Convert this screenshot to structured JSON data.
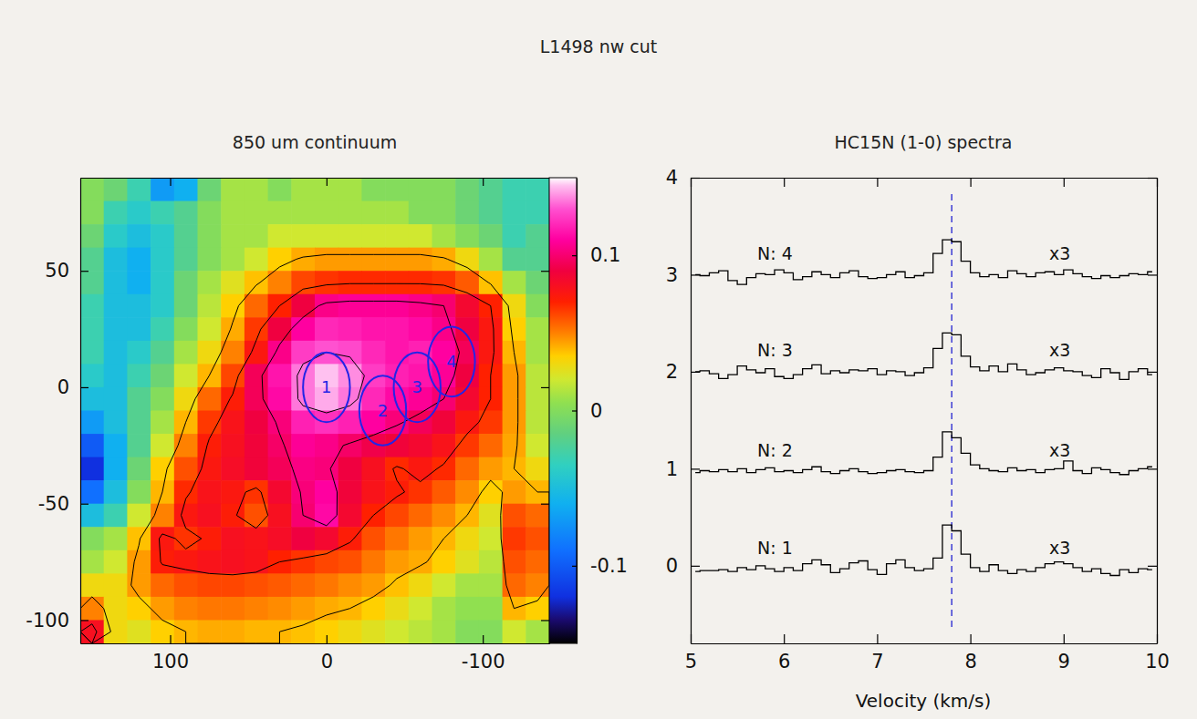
{
  "title": "L1498 nw cut",
  "chart_data": [
    {
      "type": "heatmap",
      "title": "850 um continuum",
      "x": [
        150,
        135,
        120,
        105,
        90,
        75,
        60,
        45,
        30,
        15,
        0,
        -15,
        -30,
        -45,
        -60,
        -75,
        -90,
        -105,
        -120,
        -135
      ],
      "y": [
        85,
        75,
        65,
        55,
        45,
        35,
        25,
        15,
        5,
        -5,
        -15,
        -25,
        -35,
        -45,
        -55,
        -65,
        -75,
        -85,
        -95,
        -105
      ],
      "z": [
        [
          0.0,
          -0.01,
          -0.03,
          -0.07,
          -0.06,
          -0.01,
          0.01,
          0.01,
          0.0,
          0.01,
          0.01,
          0.01,
          0.0,
          0.0,
          0.0,
          0.0,
          -0.01,
          -0.02,
          -0.03,
          -0.03
        ],
        [
          0.0,
          -0.03,
          -0.04,
          -0.03,
          -0.02,
          0.0,
          0.01,
          0.01,
          0.01,
          0.01,
          0.01,
          0.01,
          0.01,
          0.01,
          0.0,
          0.0,
          -0.01,
          -0.02,
          -0.03,
          -0.03
        ],
        [
          -0.01,
          -0.04,
          -0.05,
          -0.04,
          -0.02,
          0.0,
          0.01,
          0.01,
          0.02,
          0.02,
          0.02,
          0.02,
          0.02,
          0.02,
          0.02,
          0.01,
          0.0,
          -0.01,
          -0.03,
          -0.02
        ],
        [
          -0.02,
          -0.05,
          -0.06,
          -0.04,
          -0.02,
          0.0,
          0.01,
          0.02,
          0.035,
          0.042,
          0.045,
          0.045,
          0.045,
          0.045,
          0.045,
          0.042,
          0.03,
          0.01,
          -0.02,
          -0.02
        ],
        [
          -0.02,
          -0.05,
          -0.06,
          -0.04,
          -0.01,
          0.01,
          0.025,
          0.038,
          0.05,
          0.062,
          0.066,
          0.068,
          0.068,
          0.068,
          0.068,
          0.066,
          0.058,
          0.038,
          0.01,
          -0.01
        ],
        [
          -0.03,
          -0.05,
          -0.05,
          -0.04,
          -0.01,
          0.015,
          0.035,
          0.055,
          0.07,
          0.09,
          0.105,
          0.108,
          0.108,
          0.108,
          0.105,
          0.1,
          0.085,
          0.07,
          0.03,
          0.0
        ],
        [
          -0.03,
          -0.05,
          -0.05,
          -0.03,
          0.0,
          0.02,
          0.042,
          0.065,
          0.09,
          0.11,
          0.12,
          0.118,
          0.115,
          0.115,
          0.112,
          0.105,
          0.09,
          0.075,
          0.035,
          0.01
        ],
        [
          -0.03,
          -0.05,
          -0.04,
          -0.02,
          0.01,
          0.03,
          0.05,
          0.075,
          0.105,
          0.125,
          0.13,
          0.128,
          0.12,
          0.115,
          0.118,
          0.11,
          0.095,
          0.075,
          0.04,
          0.01
        ],
        [
          -0.04,
          -0.05,
          -0.03,
          -0.01,
          0.02,
          0.04,
          0.062,
          0.095,
          0.115,
          0.135,
          0.145,
          0.138,
          0.125,
          0.118,
          0.115,
          0.108,
          0.09,
          0.07,
          0.045,
          0.015
        ],
        [
          -0.05,
          -0.05,
          -0.02,
          0.0,
          0.03,
          0.055,
          0.072,
          0.095,
          0.112,
          0.135,
          0.142,
          0.135,
          0.12,
          0.112,
          0.108,
          0.1,
          0.085,
          0.07,
          0.045,
          0.015
        ],
        [
          -0.07,
          -0.05,
          -0.02,
          0.01,
          0.04,
          0.065,
          0.078,
          0.09,
          0.102,
          0.118,
          0.122,
          0.118,
          0.11,
          0.102,
          0.095,
          0.088,
          0.075,
          0.065,
          0.045,
          0.015
        ],
        [
          -0.1,
          -0.06,
          -0.02,
          0.02,
          0.05,
          0.072,
          0.08,
          0.088,
          0.098,
          0.108,
          0.105,
          0.098,
          0.092,
          0.088,
          0.085,
          0.078,
          0.065,
          0.055,
          0.043,
          0.02
        ],
        [
          -0.12,
          -0.06,
          -0.01,
          0.035,
          0.06,
          0.075,
          0.082,
          0.088,
          0.095,
          0.104,
          0.102,
          0.09,
          0.08,
          0.068,
          0.075,
          0.068,
          0.055,
          0.045,
          0.04,
          0.03
        ],
        [
          -0.09,
          -0.05,
          0.0,
          0.04,
          0.068,
          0.078,
          0.075,
          0.066,
          0.085,
          0.102,
          0.11,
          0.088,
          0.078,
          0.072,
          0.066,
          0.058,
          0.048,
          0.035,
          0.045,
          0.04
        ],
        [
          -0.05,
          -0.03,
          0.02,
          0.05,
          0.075,
          0.08,
          0.072,
          0.06,
          0.08,
          0.1,
          0.112,
          0.085,
          0.07,
          0.062,
          0.055,
          0.048,
          0.04,
          0.025,
          0.06,
          0.055
        ],
        [
          0.0,
          0.01,
          0.038,
          0.075,
          0.066,
          0.072,
          0.08,
          0.078,
          0.082,
          0.09,
          0.085,
          0.072,
          0.06,
          0.052,
          0.045,
          0.04,
          0.03,
          0.02,
          0.065,
          0.06
        ],
        [
          0.01,
          0.02,
          0.045,
          0.072,
          0.075,
          0.078,
          0.08,
          0.078,
          0.07,
          0.066,
          0.062,
          0.06,
          0.052,
          0.045,
          0.042,
          0.035,
          0.025,
          0.015,
          0.06,
          0.055
        ],
        [
          0.03,
          0.03,
          0.045,
          0.055,
          0.06,
          0.062,
          0.062,
          0.06,
          0.058,
          0.055,
          0.052,
          0.048,
          0.045,
          0.038,
          0.03,
          0.02,
          0.01,
          0.01,
          0.055,
          0.05
        ],
        [
          0.05,
          0.03,
          0.035,
          0.045,
          0.05,
          0.052,
          0.052,
          0.05,
          0.048,
          0.045,
          0.042,
          0.04,
          0.035,
          0.028,
          0.02,
          0.01,
          0.005,
          0.005,
          0.04,
          0.035
        ],
        [
          0.08,
          0.03,
          0.025,
          0.035,
          0.04,
          0.042,
          0.042,
          0.04,
          0.04,
          0.038,
          0.035,
          0.03,
          0.025,
          0.02,
          0.015,
          0.01,
          0.0,
          0.0,
          0.02,
          0.01
        ]
      ],
      "xlim": [
        157.5,
        -142.5
      ],
      "ylim": [
        -110,
        90
      ],
      "xticks": [
        100,
        0,
        -100
      ],
      "yticks": [
        -100,
        -50,
        0,
        50
      ],
      "colorbar": {
        "range": [
          -0.15,
          0.15
        ],
        "ticks": [
          -0.1,
          0,
          0.1
        ]
      },
      "contour_levels": [
        0.04,
        0.07,
        0.1,
        0.13
      ],
      "regions": [
        {
          "label": "1",
          "x": 0,
          "y": 0
        },
        {
          "label": "2",
          "x": -36,
          "y": -10
        },
        {
          "label": "3",
          "x": -58,
          "y": 0
        },
        {
          "label": "4",
          "x": -80,
          "y": 11
        }
      ],
      "region_diameter": 30,
      "color": "#2424e6"
    },
    {
      "type": "line",
      "title": "HC15N (1-0) spectra",
      "xlabel": "Velocity (km/s)",
      "line_style": "step",
      "color": "#000000",
      "annotation": "x3",
      "reference_line": 7.8,
      "xlim": [
        5,
        10
      ],
      "ylim": [
        -0.8,
        4
      ],
      "xticks": [
        5,
        6,
        7,
        8,
        9,
        10
      ],
      "yticks": [
        0,
        1,
        2,
        3,
        4
      ],
      "x": [
        5.05,
        5.15,
        5.25,
        5.35,
        5.45,
        5.55,
        5.65,
        5.75,
        5.85,
        5.95,
        6.05,
        6.15,
        6.25,
        6.35,
        6.45,
        6.55,
        6.65,
        6.75,
        6.85,
        6.95,
        7.05,
        7.15,
        7.25,
        7.35,
        7.45,
        7.55,
        7.65,
        7.75,
        7.85,
        7.95,
        8.05,
        8.15,
        8.25,
        8.35,
        8.45,
        8.55,
        8.65,
        8.75,
        8.85,
        8.95,
        9.05,
        9.15,
        9.25,
        9.35,
        9.45,
        9.55,
        9.65,
        9.75,
        9.85,
        9.95
      ],
      "series": [
        {
          "name": "N: 1",
          "values": [
            -0.06,
            -0.05,
            -0.05,
            -0.04,
            -0.06,
            -0.02,
            -0.04,
            0.0,
            -0.03,
            -0.06,
            -0.02,
            -0.05,
            0.02,
            0.06,
            0.01,
            -0.07,
            -0.03,
            0.03,
            0.05,
            -0.04,
            -0.09,
            0.02,
            0.06,
            -0.02,
            -0.05,
            -0.03,
            0.08,
            0.42,
            0.36,
            0.12,
            -0.02,
            -0.06,
            0.01,
            -0.05,
            -0.08,
            -0.04,
            -0.06,
            -0.02,
            0.02,
            0.04,
            0.02,
            -0.02,
            -0.06,
            -0.03,
            -0.08,
            -0.1,
            -0.04,
            -0.07,
            -0.03,
            -0.04
          ]
        },
        {
          "name": "N: 2",
          "values": [
            0.96,
            0.98,
            0.97,
            0.99,
            0.97,
            1.0,
            0.96,
            0.99,
            1.01,
            0.97,
            0.98,
            0.96,
            0.99,
            1.02,
            0.97,
            0.95,
            0.98,
            1.0,
            0.97,
            0.95,
            0.96,
            0.98,
            0.99,
            0.97,
            0.96,
            0.98,
            1.12,
            1.38,
            1.32,
            1.16,
            1.04,
            1.0,
            0.98,
            0.97,
            1.01,
            0.98,
            0.99,
            0.96,
            0.99,
            1.0,
            1.08,
            0.98,
            0.95,
            1.01,
            0.99,
            0.96,
            0.94,
            0.98,
            1.0,
            1.02
          ]
        },
        {
          "name": "N: 3",
          "values": [
            2.0,
            2.01,
            1.98,
            1.93,
            1.97,
            2.06,
            2.02,
            1.99,
            2.03,
            1.95,
            1.93,
            1.97,
            2.03,
            2.07,
            1.98,
            2.01,
            1.99,
            2.02,
            2.01,
            2.03,
            1.97,
            2.01,
            2.0,
            1.96,
            1.99,
            2.04,
            2.24,
            2.4,
            2.38,
            2.16,
            2.05,
            2.01,
            2.06,
            2.0,
            2.08,
            2.02,
            1.97,
            1.99,
            2.02,
            2.04,
            2.01,
            2.0,
            1.96,
            1.94,
            2.03,
            1.99,
            1.92,
            2.0,
            2.03,
            1.97
          ]
        },
        {
          "name": "N: 4",
          "values": [
            3.0,
            2.99,
            3.02,
            3.04,
            2.94,
            2.9,
            2.97,
            3.01,
            3.0,
            3.05,
            3.02,
            2.95,
            2.98,
            3.03,
            3.0,
            2.97,
            3.02,
            3.04,
            2.98,
            2.96,
            2.97,
            3.0,
            3.03,
            2.97,
            2.99,
            3.02,
            3.22,
            3.36,
            3.34,
            3.14,
            3.02,
            2.98,
            3.0,
            2.97,
            3.04,
            3.01,
            2.98,
            3.02,
            3.03,
            3.0,
            3.05,
            3.01,
            2.98,
            2.96,
            2.99,
            2.97,
            2.99,
            3.01,
            3.0,
            3.03
          ]
        }
      ]
    }
  ]
}
